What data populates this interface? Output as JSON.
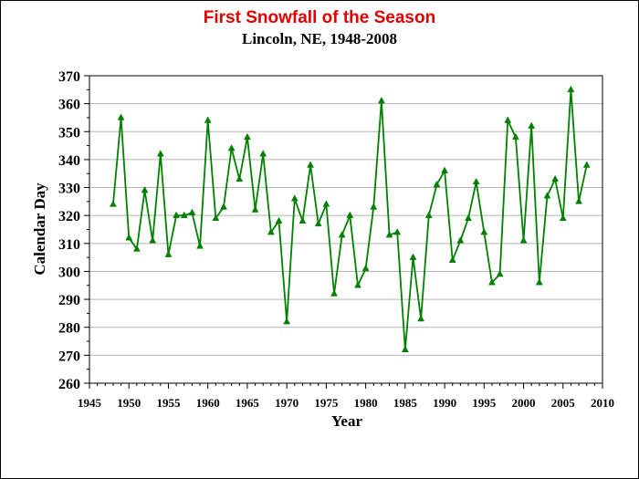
{
  "chart_data": {
    "type": "line",
    "title": "First Snowfall of the Season",
    "subtitle": "Lincoln, NE, 1948-2008",
    "xlabel": "Year",
    "ylabel": "Calendar Day",
    "xlim": [
      1945,
      2010
    ],
    "ylim": [
      260,
      370
    ],
    "x_ticks": [
      1945,
      1950,
      1955,
      1960,
      1965,
      1970,
      1975,
      1980,
      1985,
      1990,
      1995,
      2000,
      2005,
      2010
    ],
    "y_ticks": [
      260,
      270,
      280,
      290,
      300,
      310,
      320,
      330,
      340,
      350,
      360,
      370
    ],
    "grid": "horizontal",
    "legend": "none",
    "series": [
      {
        "color": "#008000",
        "marker": "triangle",
        "x": [
          1948,
          1949,
          1950,
          1951,
          1952,
          1953,
          1954,
          1955,
          1956,
          1957,
          1958,
          1959,
          1960,
          1961,
          1962,
          1963,
          1964,
          1965,
          1966,
          1967,
          1968,
          1969,
          1970,
          1971,
          1972,
          1973,
          1974,
          1975,
          1976,
          1977,
          1978,
          1979,
          1980,
          1981,
          1982,
          1983,
          1984,
          1985,
          1986,
          1987,
          1988,
          1989,
          1990,
          1991,
          1992,
          1993,
          1994,
          1995,
          1996,
          1997,
          1998,
          1999,
          2000,
          2001,
          2002,
          2003,
          2004,
          2005,
          2006,
          2007,
          2008
        ],
        "y": [
          324,
          355,
          312,
          308,
          329,
          311,
          342,
          306,
          320,
          320,
          321,
          309,
          354,
          319,
          323,
          344,
          333,
          348,
          322,
          342,
          314,
          318,
          282,
          326,
          318,
          338,
          317,
          324,
          292,
          313,
          320,
          295,
          301,
          323,
          361,
          313,
          314,
          272,
          305,
          283,
          320,
          331,
          336,
          304,
          311,
          319,
          332,
          314,
          296,
          299,
          354,
          348,
          311,
          352,
          296,
          327,
          333,
          319,
          365,
          325,
          338
        ]
      }
    ]
  }
}
